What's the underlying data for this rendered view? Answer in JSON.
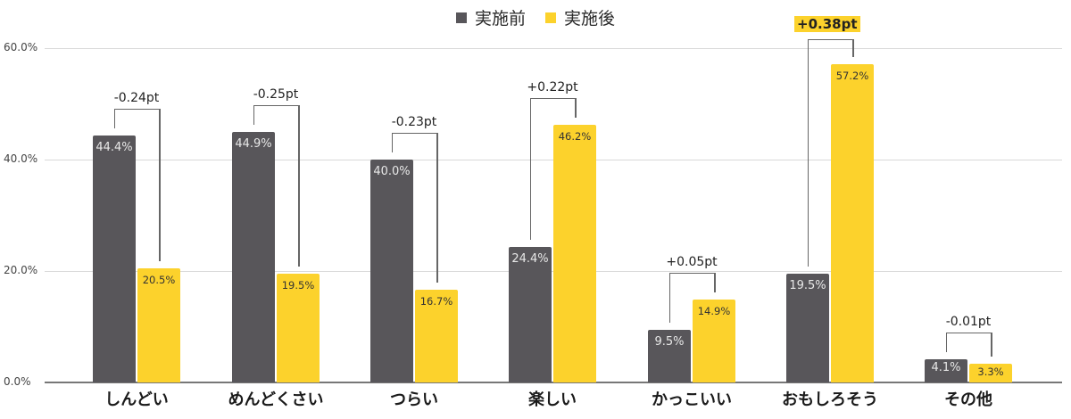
{
  "chart_data": {
    "type": "bar",
    "title": "",
    "xlabel": "",
    "ylabel": "",
    "ylim": [
      0,
      60
    ],
    "grid": true,
    "legend_position": "top",
    "yticks": [
      "0.0%",
      "20.0%",
      "40.0%",
      "60.0%"
    ],
    "categories": [
      "しんどい",
      "めんどくさい",
      "つらい",
      "楽しい",
      "かっこいい",
      "おもしろそう",
      "その他"
    ],
    "series": [
      {
        "name": "実施前",
        "color": "#58565a",
        "values": [
          44.4,
          44.9,
          40.0,
          24.4,
          9.5,
          19.5,
          4.1
        ],
        "labels": [
          "44.4%",
          "44.9%",
          "40.0%",
          "24.4%",
          "9.5%",
          "19.5%",
          "4.1%"
        ]
      },
      {
        "name": "実施後",
        "color": "#fcd22c",
        "values": [
          20.5,
          19.5,
          16.7,
          46.2,
          14.9,
          57.2,
          3.3
        ],
        "labels": [
          "20.5%",
          "19.5%",
          "16.7%",
          "46.2%",
          "14.9%",
          "57.2%",
          "3.3%"
        ]
      }
    ],
    "annotations": [
      "-0.24pt",
      "-0.25pt",
      "-0.23pt",
      "+0.22pt",
      "+0.05pt",
      "+0.38pt",
      "-0.01pt"
    ],
    "highlighted_annotation_index": 5
  },
  "legend": [
    {
      "label": "実施前",
      "color": "#58565a"
    },
    {
      "label": "実施後",
      "color": "#fcd22c"
    }
  ]
}
